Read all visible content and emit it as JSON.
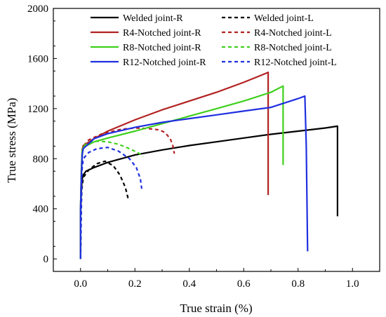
{
  "chart_data": {
    "type": "line",
    "xlabel": "True strain (%)",
    "ylabel": "True stress (MPa)",
    "xlim": [
      -0.1,
      1.1
    ],
    "ylim": [
      -100,
      2000
    ],
    "x_ticks": [
      0.0,
      0.2,
      0.4,
      0.6,
      0.8,
      1.0
    ],
    "x_tick_labels": [
      "0.0",
      "0.2",
      "0.4",
      "0.6",
      "0.8",
      "1.0"
    ],
    "y_ticks": [
      0,
      400,
      800,
      1200,
      1600,
      2000
    ],
    "y_tick_labels": [
      "0",
      "400",
      "800",
      "1200",
      "1600",
      "2000"
    ],
    "grid": false,
    "legend_position": "top",
    "series": [
      {
        "name": "Welded joint-R",
        "color": "#000000",
        "dash": "solid",
        "x": [
          0.0,
          0.0,
          0.003,
          0.006,
          0.01,
          0.02,
          0.05,
          0.1,
          0.2,
          0.3,
          0.4,
          0.5,
          0.6,
          0.7,
          0.8,
          0.9,
          0.945,
          0.945
        ],
        "y": [
          0,
          350,
          550,
          640,
          670,
          700,
          730,
          770,
          830,
          870,
          905,
          935,
          965,
          995,
          1020,
          1045,
          1060,
          340
        ]
      },
      {
        "name": "Welded joint-L",
        "color": "#000000",
        "dash": "dashed",
        "x": [
          0.0,
          0.002,
          0.005,
          0.01,
          0.03,
          0.06,
          0.09,
          0.12,
          0.145,
          0.165,
          0.175
        ],
        "y": [
          0,
          400,
          560,
          650,
          710,
          760,
          780,
          745,
          670,
          570,
          480
        ]
      },
      {
        "name": "R4-Notched joint-R",
        "color": "#b22222",
        "dash": "solid",
        "x": [
          0.0,
          0.0,
          0.003,
          0.006,
          0.01,
          0.05,
          0.1,
          0.2,
          0.3,
          0.4,
          0.5,
          0.6,
          0.68,
          0.69,
          0.69
        ],
        "y": [
          0,
          400,
          700,
          870,
          905,
          960,
          1020,
          1110,
          1190,
          1260,
          1330,
          1410,
          1480,
          1490,
          510
        ]
      },
      {
        "name": "R4-Notched joint-L",
        "color": "#b22222",
        "dash": "dashed",
        "x": [
          0.0,
          0.005,
          0.01,
          0.03,
          0.08,
          0.15,
          0.2,
          0.25,
          0.29,
          0.31,
          0.33,
          0.34,
          0.345
        ],
        "y": [
          0,
          800,
          900,
          950,
          1000,
          1035,
          1045,
          1040,
          1030,
          1010,
          960,
          900,
          840
        ]
      },
      {
        "name": "R8-Notched joint-R",
        "color": "#3fd01c",
        "dash": "solid",
        "x": [
          0.0,
          0.0,
          0.003,
          0.006,
          0.01,
          0.05,
          0.1,
          0.2,
          0.3,
          0.4,
          0.5,
          0.6,
          0.7,
          0.745,
          0.745
        ],
        "y": [
          0,
          400,
          700,
          860,
          890,
          935,
          965,
          1020,
          1080,
          1140,
          1200,
          1260,
          1330,
          1380,
          750
        ]
      },
      {
        "name": "R8-Notched joint-L",
        "color": "#3fd01c",
        "dash": "dashed",
        "x": [
          0.0,
          0.005,
          0.01,
          0.03,
          0.06,
          0.1,
          0.14,
          0.18,
          0.21,
          0.23
        ],
        "y": [
          0,
          800,
          900,
          930,
          940,
          935,
          915,
          880,
          850,
          820
        ]
      },
      {
        "name": "R12-Notched joint-R",
        "color": "#1f2fe0",
        "dash": "solid",
        "x": [
          0.0,
          0.0,
          0.003,
          0.006,
          0.01,
          0.05,
          0.1,
          0.2,
          0.3,
          0.4,
          0.5,
          0.6,
          0.7,
          0.8,
          0.825,
          0.83,
          0.835
        ],
        "y": [
          0,
          400,
          650,
          830,
          880,
          960,
          1000,
          1050,
          1090,
          1120,
          1150,
          1180,
          1210,
          1280,
          1300,
          900,
          60
        ]
      },
      {
        "name": "R12-Notched joint-L",
        "color": "#1f2fe0",
        "dash": "dashed",
        "x": [
          0.0,
          0.005,
          0.01,
          0.03,
          0.06,
          0.1,
          0.14,
          0.18,
          0.205,
          0.22,
          0.225
        ],
        "y": [
          0,
          700,
          800,
          850,
          880,
          890,
          860,
          800,
          730,
          640,
          560
        ]
      }
    ]
  }
}
